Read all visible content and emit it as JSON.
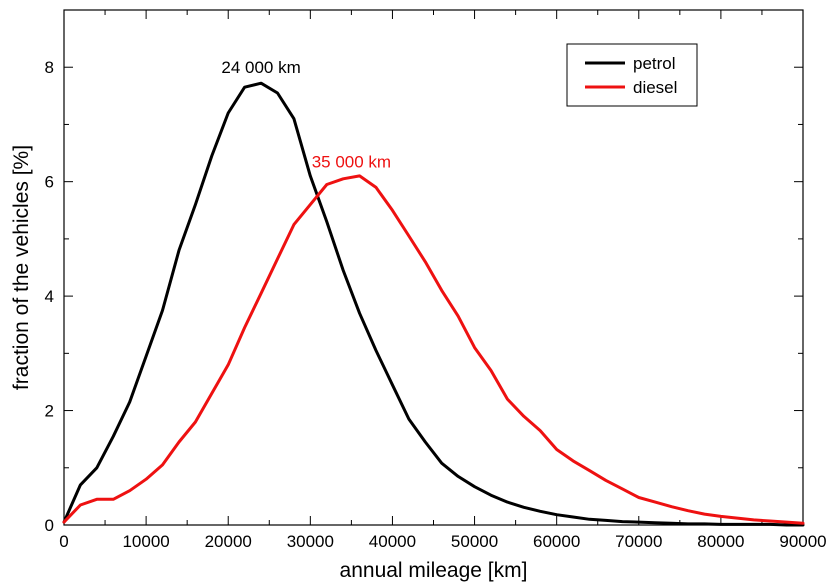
{
  "chart_data": {
    "type": "line",
    "xlabel": "annual mileage [km]",
    "ylabel": "fraction of the vehicles [%]",
    "xlim": [
      0,
      90000
    ],
    "ylim": [
      0,
      9
    ],
    "xticks": [
      0,
      10000,
      20000,
      30000,
      40000,
      50000,
      60000,
      70000,
      80000,
      90000
    ],
    "xtick_labels": [
      "0",
      "10000",
      "20000",
      "30000",
      "40000",
      "50000",
      "60000",
      "70000",
      "80000",
      "90000"
    ],
    "yticks": [
      0,
      2,
      4,
      6,
      8
    ],
    "ytick_labels": [
      "0",
      "2",
      "4",
      "6",
      "8"
    ],
    "grid": false,
    "legend_position": "top-right",
    "series": [
      {
        "name": "petrol",
        "color": "#000000",
        "x": [
          0,
          2000,
          4000,
          6000,
          8000,
          10000,
          12000,
          14000,
          16000,
          18000,
          20000,
          22000,
          24000,
          26000,
          28000,
          30000,
          32000,
          34000,
          36000,
          38000,
          40000,
          42000,
          44000,
          46000,
          48000,
          50000,
          52000,
          54000,
          56000,
          58000,
          60000,
          62000,
          64000,
          66000,
          68000,
          70000,
          72000,
          74000,
          76000,
          78000,
          80000,
          82000,
          84000,
          86000,
          88000,
          90000
        ],
        "y": [
          0.05,
          0.7,
          1.0,
          1.55,
          2.15,
          2.95,
          3.75,
          4.8,
          5.6,
          6.45,
          7.2,
          7.65,
          7.72,
          7.55,
          7.1,
          6.1,
          5.3,
          4.45,
          3.7,
          3.05,
          2.45,
          1.85,
          1.45,
          1.08,
          0.85,
          0.67,
          0.52,
          0.4,
          0.31,
          0.24,
          0.18,
          0.14,
          0.1,
          0.08,
          0.06,
          0.05,
          0.04,
          0.03,
          0.02,
          0.02,
          0.01,
          0.01,
          0.01,
          0.01,
          0.0,
          0.0
        ]
      },
      {
        "name": "diesel",
        "color": "#ee1111",
        "x": [
          0,
          2000,
          4000,
          6000,
          8000,
          10000,
          12000,
          14000,
          16000,
          18000,
          20000,
          22000,
          24000,
          26000,
          28000,
          30000,
          32000,
          34000,
          36000,
          38000,
          40000,
          42000,
          44000,
          46000,
          48000,
          50000,
          52000,
          54000,
          56000,
          58000,
          60000,
          62000,
          64000,
          66000,
          68000,
          70000,
          72000,
          74000,
          76000,
          78000,
          80000,
          82000,
          84000,
          86000,
          88000,
          90000
        ],
        "y": [
          0.05,
          0.35,
          0.45,
          0.45,
          0.6,
          0.8,
          1.05,
          1.45,
          1.8,
          2.3,
          2.8,
          3.45,
          4.05,
          4.65,
          5.25,
          5.6,
          5.95,
          6.05,
          6.1,
          5.9,
          5.5,
          5.05,
          4.6,
          4.1,
          3.65,
          3.1,
          2.7,
          2.2,
          1.9,
          1.65,
          1.32,
          1.12,
          0.95,
          0.78,
          0.63,
          0.48,
          0.4,
          0.32,
          0.25,
          0.19,
          0.15,
          0.12,
          0.09,
          0.07,
          0.05,
          0.03
        ]
      }
    ],
    "annotations": [
      {
        "text": "24 000 km",
        "x": 24000,
        "y": 7.9,
        "color": "#000000"
      },
      {
        "text": "35 000 km",
        "x": 35000,
        "y": 6.25,
        "color": "#ee1111"
      }
    ]
  }
}
